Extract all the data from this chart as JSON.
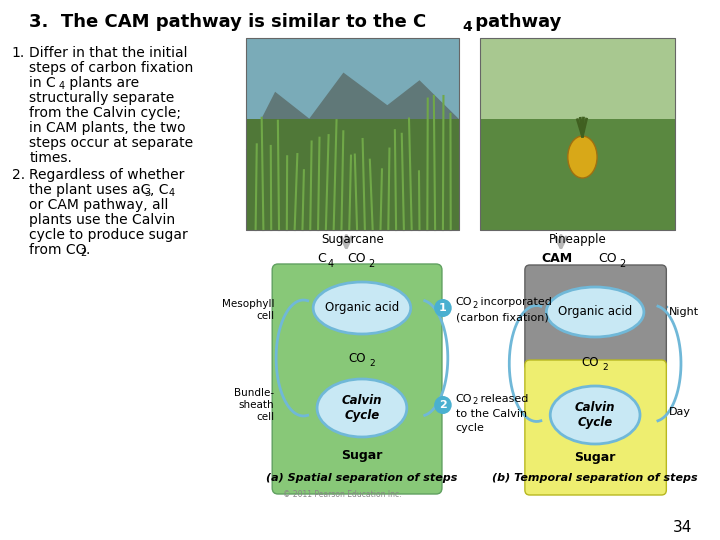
{
  "title_pre": "3.  The CAM pathway is similar to the C",
  "title_sub": "4",
  "title_post": " pathway",
  "sugarcane_label": "Sugarcane",
  "pineapple_label": "Pineapple",
  "cam_label": "CAM",
  "mesophyll_label": "Mesophyll\ncell",
  "bundle_label": "Bundle-\nsheath\ncell",
  "organic_acid_c4": "Organic acid",
  "organic_acid_cam": "Organic acid",
  "calvin_c4": "Calvin\nCycle",
  "calvin_cam": "Calvin\nCycle",
  "sugar_c4": "Sugar",
  "sugar_cam": "Sugar",
  "night_label": "Night",
  "day_label": "Day",
  "step1_text": "CO₂ incorporated\n(carbon fixation)",
  "step2_text": "CO₂ released\nto the Calvin\ncycle",
  "caption_a": "(a) Spatial separation of steps",
  "caption_b": "(b) Temporal separation of steps",
  "copyright": "© 2011 Pearson Education Inc.",
  "page_num": "34",
  "bg_color": "#ffffff",
  "green_bg": "#88c878",
  "green_bg2": "#a0d488",
  "yellow_bg": "#eeee70",
  "gray_bg": "#909090",
  "teal_fill": "#c8e8f4",
  "teal_stroke": "#70b8d8",
  "step_color": "#4ab0d0",
  "photo_arrow_color": "#c0c0c0",
  "title_fontsize": 13,
  "body_fontsize": 10,
  "diagram_fontsize": 8.5,
  "small_fontsize": 7
}
